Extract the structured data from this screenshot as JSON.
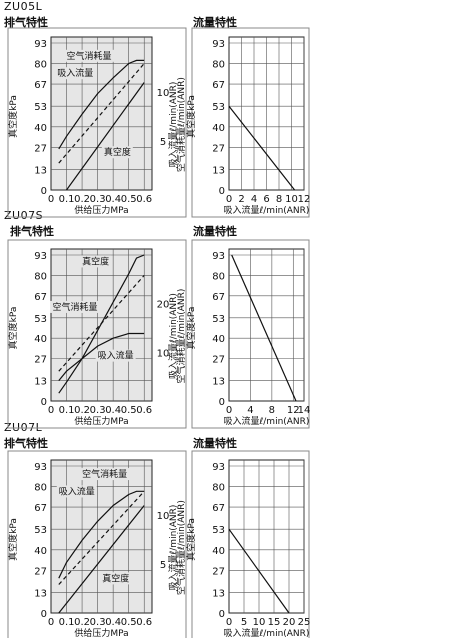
{
  "sections": [
    {
      "model": "ZU05L",
      "left_title": "排气特性",
      "right_title": "流量特性"
    },
    {
      "model": "ZU07S",
      "left_title": "排气特性",
      "right_title": "流量特性"
    },
    {
      "model": "ZU07L",
      "left_title": "排气特性",
      "right_title": "流量特性"
    }
  ],
  "chart_data": [
    {
      "model": "ZU05L",
      "type": "line",
      "title": "排气特性",
      "xlabel": "供给压力MPa",
      "ylabel": "真空度kPa",
      "y2label_line1": "吸入流量ℓ/min(ANR)",
      "y2label_line2": "空气消耗量ℓ/min(ANR)",
      "xlim": [
        0,
        0.65
      ],
      "ylim": [
        0,
        93
      ],
      "xticks": [
        "0",
        "0.1",
        "0.2",
        "0.3",
        "0.4",
        "0.5",
        "0.6"
      ],
      "yticks": [
        "0",
        "13",
        "27",
        "40",
        "53",
        "67",
        "80",
        "93"
      ],
      "y2lim": [
        0,
        15
      ],
      "y2ticks": [
        "5",
        "10"
      ],
      "y2tick_values": [
        5,
        10
      ],
      "series": [
        {
          "name": "空气消耗量",
          "dash": false,
          "x": [
            0.05,
            0.1,
            0.2,
            0.3,
            0.4,
            0.5,
            0.55,
            0.6
          ],
          "y": [
            26,
            34,
            48,
            61,
            71,
            80,
            82,
            82
          ]
        },
        {
          "name": "吸入流量",
          "dash": true,
          "x": [
            0.05,
            0.6
          ],
          "y": [
            17,
            80
          ]
        },
        {
          "name": "真空度",
          "dash": false,
          "x": [
            0.1,
            0.6
          ],
          "y": [
            0,
            68
          ]
        }
      ],
      "annotations": [
        {
          "text": "空气消耗量",
          "x": 0.1,
          "y": 83
        },
        {
          "text": "吸入流量",
          "x": 0.04,
          "y": 72
        },
        {
          "text": "真空度",
          "x": 0.34,
          "y": 22
        }
      ]
    },
    {
      "model": "ZU05L",
      "type": "line",
      "title": "流量特性",
      "xlabel": "吸入流量ℓ/min(ANR)",
      "ylabel": "真空度kPa",
      "xlim": [
        0,
        12
      ],
      "ylim": [
        0,
        93
      ],
      "xticks": [
        "0",
        "2",
        "4",
        "6",
        "8",
        "10",
        "12"
      ],
      "yticks": [
        "0",
        "13",
        "27",
        "40",
        "53",
        "67",
        "80",
        "93"
      ],
      "series": [
        {
          "x": [
            0,
            10.5
          ],
          "y": [
            53,
            0
          ]
        }
      ]
    },
    {
      "model": "ZU07S",
      "type": "line",
      "title": "排气特性",
      "xlabel": "供给压力MPa",
      "ylabel": "真空度kPa",
      "y2label_line1": "吸入流量ℓ/min(ANR)",
      "y2label_line2": "空气消耗量ℓ/min(ANR)",
      "xlim": [
        0,
        0.65
      ],
      "ylim": [
        0,
        93
      ],
      "xticks": [
        "0",
        "0.1",
        "0.2",
        "0.3",
        "0.4",
        "0.5",
        "0.6"
      ],
      "yticks": [
        "0",
        "13",
        "27",
        "40",
        "53",
        "67",
        "80",
        "93"
      ],
      "y2lim": [
        0,
        30
      ],
      "y2ticks": [
        "10",
        "20"
      ],
      "y2tick_values": [
        10,
        20
      ],
      "series": [
        {
          "name": "真空度",
          "dash": false,
          "x": [
            0.05,
            0.1,
            0.2,
            0.3,
            0.4,
            0.5,
            0.55,
            0.6
          ],
          "y": [
            5,
            12,
            27,
            45,
            63,
            81,
            91,
            93
          ]
        },
        {
          "name": "空气消耗量",
          "dash": true,
          "x": [
            0.05,
            0.6
          ],
          "y": [
            19,
            80
          ]
        },
        {
          "name": "吸入流量",
          "dash": false,
          "x": [
            0.05,
            0.1,
            0.2,
            0.3,
            0.4,
            0.5,
            0.6
          ],
          "y": [
            13,
            19,
            27,
            35,
            40,
            43,
            43
          ]
        }
      ],
      "annotations": [
        {
          "text": "真空度",
          "x": 0.2,
          "y": 87
        },
        {
          "text": "空气消耗量",
          "x": 0.01,
          "y": 58
        },
        {
          "text": "吸入流量",
          "x": 0.3,
          "y": 27
        }
      ]
    },
    {
      "model": "ZU07S",
      "type": "line",
      "title": "流量特性",
      "xlabel": "吸入流量ℓ/min(ANR)",
      "ylabel": "真空度kPa",
      "xlim": [
        0,
        14
      ],
      "ylim": [
        0,
        93
      ],
      "xticks": [
        "0",
        "4",
        "8",
        "12",
        "14"
      ],
      "xtick_values": [
        0,
        4,
        8,
        12,
        14
      ],
      "yticks": [
        "0",
        "13",
        "27",
        "40",
        "53",
        "67",
        "80",
        "93"
      ],
      "series": [
        {
          "x": [
            0.5,
            12.5
          ],
          "y": [
            93,
            0
          ]
        }
      ]
    },
    {
      "model": "ZU07L",
      "type": "line",
      "title": "排气特性",
      "xlabel": "供给压力MPa",
      "ylabel": "真空度kPa",
      "y2label_line1": "吸入流量ℓ/min(ANR)",
      "y2label_line2": "空气消耗量ℓ/min(ANR)",
      "xlim": [
        0,
        0.65
      ],
      "ylim": [
        0,
        93
      ],
      "xticks": [
        "0",
        "0.1",
        "0.2",
        "0.3",
        "0.4",
        "0.5",
        "0.6"
      ],
      "yticks": [
        "0",
        "13",
        "27",
        "40",
        "53",
        "67",
        "80",
        "93"
      ],
      "y2lim": [
        0,
        15
      ],
      "y2ticks": [
        "5",
        "10"
      ],
      "y2tick_values": [
        5,
        10
      ],
      "series": [
        {
          "name": "空气消耗量",
          "dash": false,
          "x": [
            0.05,
            0.1,
            0.2,
            0.3,
            0.4,
            0.5,
            0.55,
            0.6
          ],
          "y": [
            22,
            32,
            46,
            58,
            68,
            75,
            77,
            77
          ]
        },
        {
          "name": "吸入流量",
          "dash": true,
          "x": [
            0.05,
            0.6
          ],
          "y": [
            18,
            77
          ]
        },
        {
          "name": "真空度",
          "dash": false,
          "x": [
            0.05,
            0.6
          ],
          "y": [
            0,
            68
          ]
        }
      ],
      "annotations": [
        {
          "text": "空气消耗量",
          "x": 0.2,
          "y": 86
        },
        {
          "text": "吸入流量",
          "x": 0.05,
          "y": 75
        },
        {
          "text": "真空度",
          "x": 0.33,
          "y": 20
        }
      ]
    },
    {
      "model": "ZU07L",
      "type": "line",
      "title": "流量特性",
      "xlabel": "吸入流量ℓ/min(ANR)",
      "ylabel": "真空度kPa",
      "xlim": [
        0,
        25
      ],
      "ylim": [
        0,
        93
      ],
      "xticks": [
        "0",
        "5",
        "10",
        "15",
        "20",
        "25"
      ],
      "yticks": [
        "0",
        "13",
        "27",
        "40",
        "53",
        "67",
        "80",
        "93"
      ],
      "series": [
        {
          "x": [
            0,
            20
          ],
          "y": [
            53,
            0
          ]
        }
      ]
    }
  ]
}
